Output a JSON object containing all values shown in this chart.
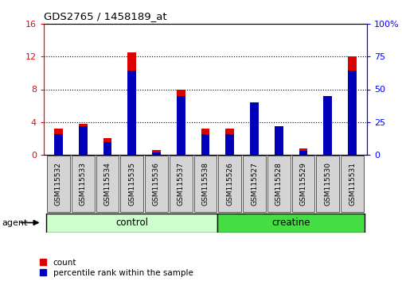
{
  "title": "GDS2765 / 1458189_at",
  "categories": [
    "GSM115532",
    "GSM115533",
    "GSM115534",
    "GSM115535",
    "GSM115536",
    "GSM115537",
    "GSM115538",
    "GSM115526",
    "GSM115527",
    "GSM115528",
    "GSM115529",
    "GSM115530",
    "GSM115531"
  ],
  "count_values": [
    3.2,
    3.8,
    2.0,
    12.5,
    0.6,
    8.0,
    3.2,
    3.2,
    2.8,
    3.2,
    0.8,
    6.0,
    12.0
  ],
  "percentile_values": [
    16.0,
    22.0,
    10.0,
    64.0,
    2.0,
    45.0,
    16.0,
    16.0,
    40.0,
    22.0,
    3.0,
    45.0,
    64.0
  ],
  "groups": [
    "control",
    "control",
    "control",
    "control",
    "control",
    "control",
    "control",
    "creatine",
    "creatine",
    "creatine",
    "creatine",
    "creatine",
    "creatine"
  ],
  "control_color": "#ccffcc",
  "creatine_color": "#44dd44",
  "bar_color_count": "#dd0000",
  "bar_color_percentile": "#0000bb",
  "ylim_left": [
    0,
    16
  ],
  "ylim_right": [
    0,
    100
  ],
  "yticks_left": [
    0,
    4,
    8,
    12,
    16
  ],
  "yticks_right": [
    0,
    25,
    50,
    75,
    100
  ],
  "ytick_labels_right": [
    "0",
    "25",
    "50",
    "75",
    "100%"
  ],
  "agent_label": "agent",
  "legend_count": "count",
  "legend_percentile": "percentile rank within the sample"
}
